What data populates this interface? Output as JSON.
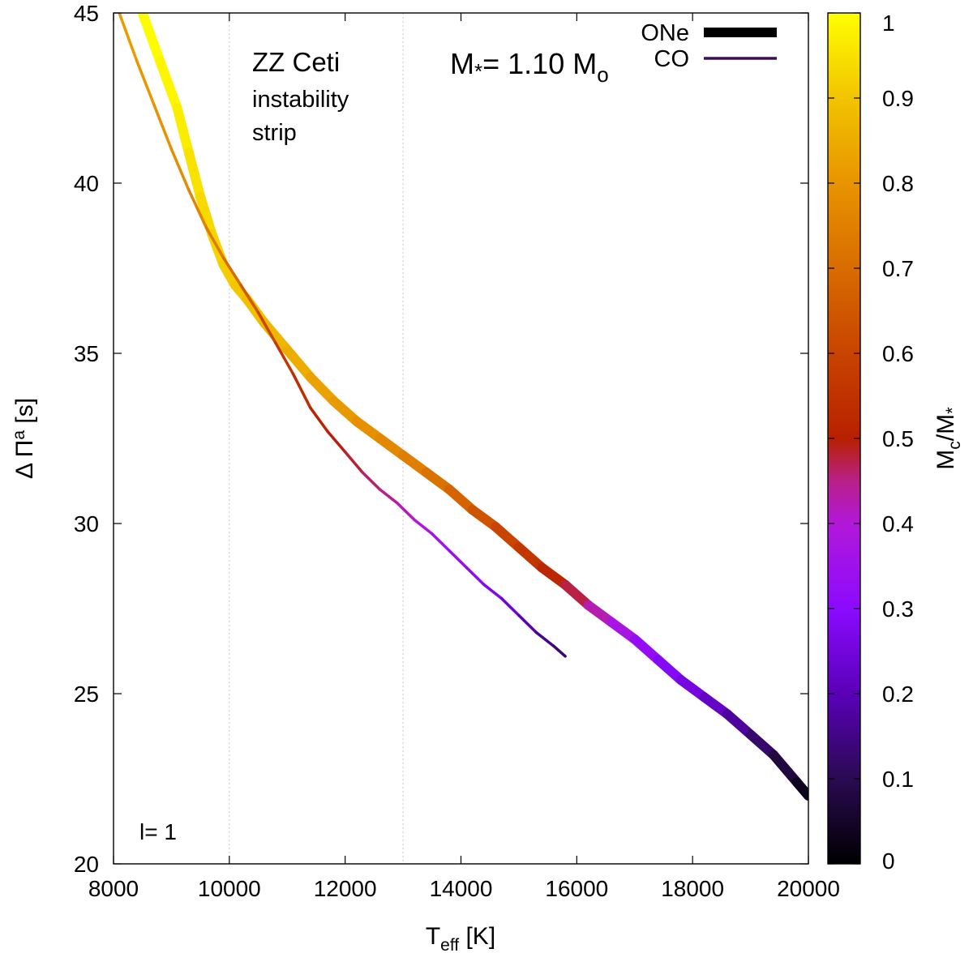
{
  "chart_data": {
    "type": "line",
    "title": "",
    "annotations": {
      "strip_title": "ZZ Ceti",
      "strip_line1": "instability",
      "strip_line2": "strip",
      "mass_prefix": "M",
      "mass_star": "*",
      "mass_eq": "= 1.10 M",
      "mass_sub": "o",
      "mode": "l= 1"
    },
    "xlabel_main": "T",
    "xlabel_sub": "eff",
    "xlabel_unit": " [K]",
    "ylabel_delta": "Δ Π",
    "ylabel_sup": "a",
    "ylabel_unit": " [s]",
    "xlim": [
      8000,
      20000
    ],
    "ylim": [
      20,
      45
    ],
    "x_ticks": [
      8000,
      10000,
      12000,
      14000,
      16000,
      18000,
      20000
    ],
    "y_ticks": [
      20,
      25,
      30,
      35,
      40,
      45
    ],
    "vlines": [
      10000,
      13000
    ],
    "legend_position": "top-right",
    "colorbar": {
      "label_main": "M",
      "label_sub": "c",
      "label_rest": "/M",
      "label_star": "*",
      "range": [
        0,
        1
      ],
      "ticks": [
        "0",
        "0.1",
        "0.2",
        "0.3",
        "0.4",
        "0.5",
        "0.6",
        "0.7",
        "0.8",
        "0.9",
        "1"
      ],
      "stops": [
        {
          "v": 0.0,
          "color": "#000000"
        },
        {
          "v": 0.1,
          "color": "#2a0a52"
        },
        {
          "v": 0.2,
          "color": "#5a00b8"
        },
        {
          "v": 0.3,
          "color": "#8b0aff"
        },
        {
          "v": 0.4,
          "color": "#b218d8"
        },
        {
          "v": 0.45,
          "color": "#b82088"
        },
        {
          "v": 0.5,
          "color": "#b82000"
        },
        {
          "v": 0.6,
          "color": "#c84400"
        },
        {
          "v": 0.7,
          "color": "#d86c00"
        },
        {
          "v": 0.8,
          "color": "#e89400"
        },
        {
          "v": 0.9,
          "color": "#f2c400"
        },
        {
          "v": 1.0,
          "color": "#ffff00"
        }
      ]
    },
    "series": [
      {
        "name": "ONe",
        "legend_color": "#000000",
        "x": [
          8500,
          8800,
          9100,
          9300,
          9500,
          9700,
          9900,
          10100,
          10300,
          10600,
          11000,
          11400,
          11800,
          12200,
          12600,
          13000,
          13400,
          13800,
          14200,
          14600,
          15000,
          15400,
          15800,
          16200,
          16600,
          17000,
          17400,
          17800,
          18200,
          18600,
          19000,
          19400,
          19800,
          20000
        ],
        "y": [
          45.0,
          43.6,
          42.2,
          40.9,
          39.6,
          38.5,
          37.6,
          37.0,
          36.6,
          35.9,
          35.1,
          34.3,
          33.6,
          33.0,
          32.5,
          32.0,
          31.5,
          31.0,
          30.4,
          29.9,
          29.3,
          28.7,
          28.2,
          27.6,
          27.1,
          26.6,
          26.0,
          25.4,
          24.9,
          24.4,
          23.8,
          23.2,
          22.4,
          22.0
        ],
        "mc": [
          1.0,
          0.99,
          0.98,
          0.96,
          0.94,
          0.93,
          0.92,
          0.91,
          0.9,
          0.88,
          0.86,
          0.84,
          0.82,
          0.8,
          0.78,
          0.76,
          0.73,
          0.7,
          0.66,
          0.62,
          0.58,
          0.54,
          0.5,
          0.45,
          0.4,
          0.35,
          0.3,
          0.27,
          0.24,
          0.2,
          0.15,
          0.1,
          0.05,
          0.02
        ]
      },
      {
        "name": "CO",
        "legend_color": "#3a1050",
        "x": [
          8100,
          8400,
          8700,
          9000,
          9300,
          9600,
          9900,
          10200,
          10500,
          10800,
          11100,
          11400,
          11700,
          12000,
          12300,
          12600,
          12900,
          13200,
          13500,
          13800,
          14100,
          14400,
          14700,
          15000,
          15300,
          15600,
          15800
        ],
        "y": [
          45.0,
          43.6,
          42.3,
          41.0,
          39.8,
          38.7,
          37.8,
          37.0,
          36.2,
          35.3,
          34.4,
          33.4,
          32.7,
          32.1,
          31.5,
          31.0,
          30.6,
          30.1,
          29.7,
          29.2,
          28.7,
          28.2,
          27.8,
          27.3,
          26.8,
          26.4,
          26.1
        ],
        "mc": [
          0.82,
          0.81,
          0.8,
          0.79,
          0.77,
          0.75,
          0.72,
          0.68,
          0.63,
          0.58,
          0.55,
          0.52,
          0.5,
          0.49,
          0.47,
          0.45,
          0.43,
          0.41,
          0.38,
          0.35,
          0.32,
          0.29,
          0.26,
          0.22,
          0.18,
          0.14,
          0.12
        ]
      }
    ]
  }
}
